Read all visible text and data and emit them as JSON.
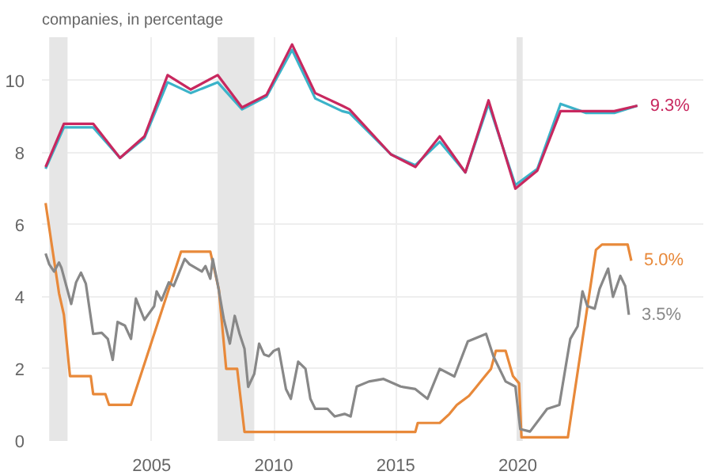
{
  "chart_data": {
    "type": "line",
    "subtitle": "companies, in percentage",
    "xlim": [
      2000.5,
      2027.6
    ],
    "xticks": [
      2005,
      2010,
      2015,
      2020
    ],
    "ylim": [
      0,
      11.2
    ],
    "yticks": [
      0,
      2,
      4,
      6,
      8,
      10
    ],
    "grid": true,
    "marker": "none",
    "line_style": "solid",
    "series": [
      {
        "color": "#3bb3c9",
        "x": [
          2000.65,
          2001.4,
          2002.6,
          2003.7,
          2004.7,
          2005.65,
          2006.6,
          2007.7,
          2008.7,
          2009.7,
          2010.75,
          2011.7,
          2012.8,
          2013.1,
          2014.8,
          2015.8,
          2016.8,
          2017.85,
          2018.8,
          2019.9,
          2020.8,
          2021.75,
          2022.8,
          2023.95,
          2024.9
        ],
        "values": [
          7.55,
          8.7,
          8.7,
          7.85,
          8.4,
          9.95,
          9.65,
          9.95,
          9.2,
          9.55,
          10.85,
          9.5,
          9.15,
          9.1,
          7.95,
          7.65,
          8.3,
          7.45,
          9.35,
          7.1,
          7.55,
          9.35,
          9.1,
          9.1,
          9.3
        ]
      },
      {
        "color": "#c8285f",
        "x": [
          2000.65,
          2001.4,
          2002.6,
          2003.7,
          2004.7,
          2005.65,
          2006.6,
          2007.7,
          2008.7,
          2009.7,
          2010.75,
          2011.7,
          2012.8,
          2013.1,
          2014.8,
          2015.8,
          2016.8,
          2017.85,
          2018.8,
          2019.9,
          2020.8,
          2021.75,
          2022.8,
          2023.95,
          2024.9
        ],
        "values": [
          7.6,
          8.8,
          8.8,
          7.85,
          8.45,
          10.15,
          9.75,
          10.15,
          9.25,
          9.6,
          11.0,
          9.65,
          9.3,
          9.2,
          7.95,
          7.6,
          8.45,
          7.45,
          9.45,
          7.0,
          7.5,
          9.15,
          9.15,
          9.15,
          9.3
        ]
      },
      {
        "color": "#e8893a",
        "x": [
          2000.65,
          2000.9,
          2001.2,
          2001.4,
          2001.65,
          2002.5,
          2002.6,
          2003.1,
          2003.25,
          2004.15,
          2006.2,
          2007.4,
          2007.75,
          2008.05,
          2008.5,
          2008.8,
          2015.8,
          2015.9,
          2016.8,
          2017.2,
          2017.5,
          2018.0,
          2018.3,
          2018.6,
          2018.9,
          2019.1,
          2019.5,
          2019.8,
          2020.05,
          2020.15,
          2022.05,
          2023.2,
          2023.45,
          2024.5,
          2024.65
        ],
        "values": [
          6.6,
          5.45,
          4.1,
          3.5,
          1.8,
          1.8,
          1.3,
          1.3,
          1.0,
          1.0,
          5.25,
          5.25,
          4.2,
          2.0,
          2.0,
          0.25,
          0.25,
          0.5,
          0.5,
          0.75,
          1.0,
          1.25,
          1.5,
          1.75,
          2.0,
          2.5,
          2.5,
          1.8,
          1.6,
          0.1,
          0.1,
          5.3,
          5.45,
          5.45,
          5.0
        ]
      },
      {
        "color": "#888888",
        "x": [
          2000.65,
          2000.8,
          2001.0,
          2001.2,
          2001.3,
          2001.7,
          2001.9,
          2002.1,
          2002.3,
          2002.6,
          2002.95,
          2003.2,
          2003.4,
          2003.6,
          2003.9,
          2004.15,
          2004.35,
          2004.7,
          2005.1,
          2005.2,
          2005.4,
          2005.7,
          2005.9,
          2006.35,
          2006.55,
          2007.05,
          2007.2,
          2007.4,
          2007.5,
          2007.7,
          2007.95,
          2008.2,
          2008.4,
          2008.6,
          2008.8,
          2008.95,
          2009.2,
          2009.4,
          2009.6,
          2009.8,
          2010.0,
          2010.2,
          2010.5,
          2010.7,
          2011.0,
          2011.3,
          2011.5,
          2011.7,
          2012.2,
          2012.5,
          2012.9,
          2013.15,
          2013.4,
          2013.9,
          2014.5,
          2015.2,
          2015.8,
          2016.3,
          2016.8,
          2017.4,
          2017.95,
          2018.7,
          2019.0,
          2019.5,
          2019.9,
          2020.1,
          2020.5,
          2021.2,
          2021.7,
          2022.15,
          2022.45,
          2022.65,
          2022.85,
          2023.15,
          2023.35,
          2023.7,
          2023.9,
          2024.2,
          2024.4,
          2024.55
        ],
        "values": [
          5.2,
          4.9,
          4.7,
          4.95,
          4.8,
          3.8,
          4.4,
          4.67,
          4.36,
          2.97,
          3.0,
          2.83,
          2.25,
          3.3,
          3.2,
          2.83,
          3.95,
          3.36,
          3.74,
          4.15,
          3.9,
          4.4,
          4.3,
          5.05,
          4.9,
          4.7,
          4.85,
          4.5,
          5.05,
          4.36,
          3.39,
          2.7,
          3.47,
          2.97,
          2.56,
          1.5,
          1.86,
          2.7,
          2.4,
          2.35,
          2.5,
          2.56,
          1.44,
          1.17,
          2.2,
          2.0,
          1.17,
          0.89,
          0.89,
          0.68,
          0.75,
          0.68,
          1.51,
          1.65,
          1.72,
          1.51,
          1.44,
          1.17,
          2.0,
          1.79,
          2.76,
          2.97,
          2.35,
          1.65,
          1.51,
          0.33,
          0.26,
          0.89,
          1.0,
          2.83,
          3.18,
          4.15,
          3.74,
          3.67,
          4.22,
          4.78,
          4.0,
          4.58,
          4.3,
          3.5
        ]
      }
    ],
    "bands": [
      {
        "axis": "x",
        "from": 2000.8,
        "to": 2001.55,
        "color": "#e6e6e6"
      },
      {
        "axis": "x",
        "from": 2007.7,
        "to": 2009.2,
        "color": "#e6e6e6"
      },
      {
        "axis": "x",
        "from": 2019.95,
        "to": 2020.2,
        "color": "#e6e6e6"
      }
    ],
    "annotations": [
      {
        "text": "9.3%",
        "x": 2024.9,
        "y": 9.3
      },
      {
        "text": "5.0%",
        "x": 2024.65,
        "y": 5.0
      },
      {
        "text": "3.5%",
        "x": 2024.55,
        "y": 3.5
      }
    ]
  }
}
